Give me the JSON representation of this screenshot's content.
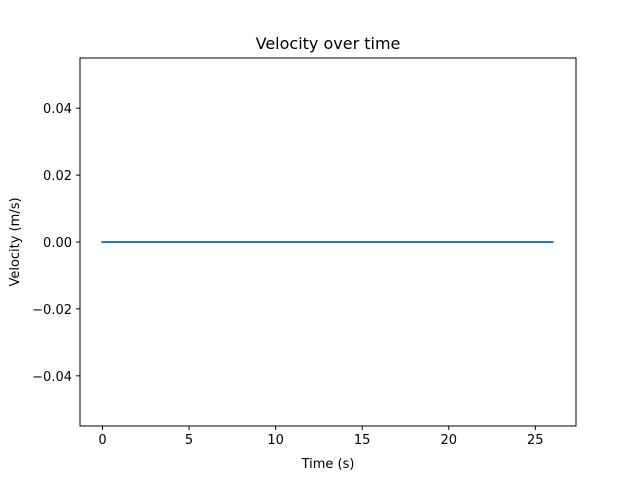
{
  "chart_data": {
    "type": "line",
    "title": "Velocity over time",
    "xlabel": "Time (s)",
    "ylabel": "Velocity (m/s)",
    "xlim": [
      -1.3,
      27.35
    ],
    "ylim": [
      -0.055,
      0.055
    ],
    "x_ticks": [
      0,
      5,
      10,
      15,
      20,
      25
    ],
    "x_tick_labels": [
      "0",
      "5",
      "10",
      "15",
      "20",
      "25"
    ],
    "y_ticks": [
      -0.04,
      -0.02,
      0.0,
      0.02,
      0.04
    ],
    "y_tick_labels": [
      "−0.04",
      "−0.02",
      "0.00",
      "0.02",
      "0.04"
    ],
    "grid": false,
    "legend": "none",
    "series": [
      {
        "color": "#1f77b4",
        "x": [
          0,
          26
        ],
        "y": [
          0.0,
          0.0
        ]
      }
    ]
  }
}
